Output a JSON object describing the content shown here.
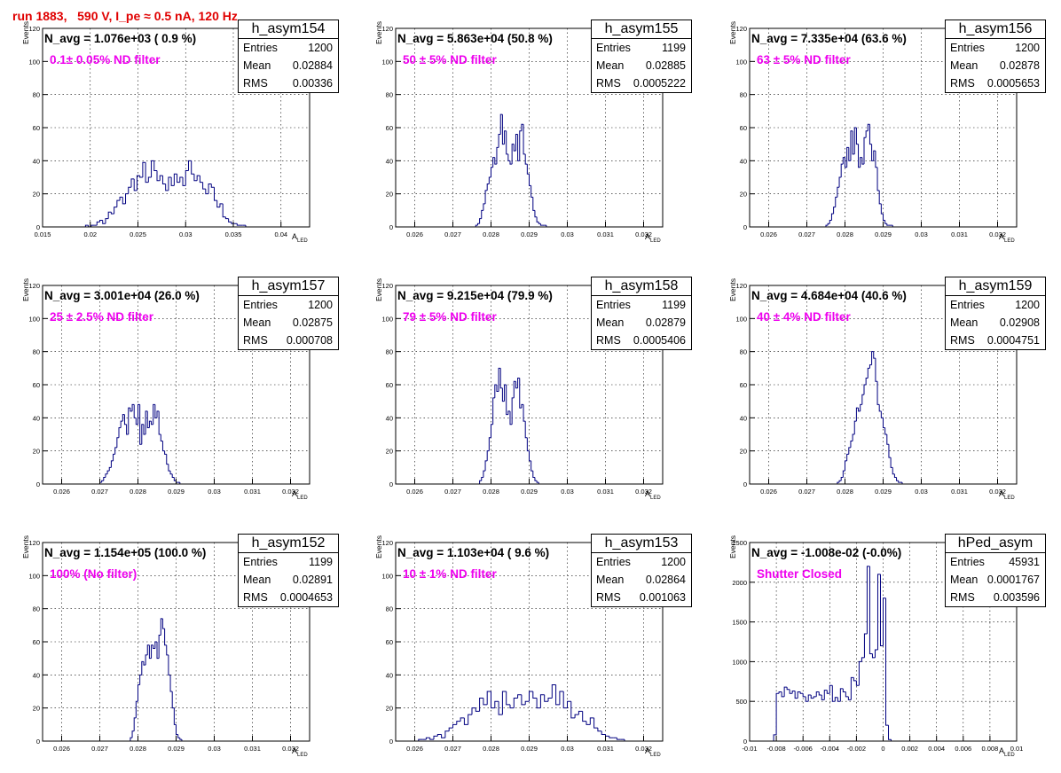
{
  "page_title": "run 1883,   590 V, I_pe ≈ 0.5 nA, 120 Hz",
  "chart_data": [
    {
      "type": "bar",
      "histogram": true,
      "name": "h_asym154",
      "navg": "N_avg = 1.076e+03 ( 0.9 %)",
      "filter": "0.1± 0.05% ND filter",
      "stats": {
        "entries": "1200",
        "mean": "0.02884",
        "rms": "0.00336"
      },
      "xlim": [
        0.015,
        0.043
      ],
      "ylim": [
        0,
        120
      ],
      "xticks": [
        0.015,
        0.02,
        0.025,
        0.03,
        0.035,
        0.04
      ],
      "xtick_labels": [
        "0.015",
        "0.02",
        "0.025",
        "0.03",
        "0.035",
        "0.04"
      ],
      "yticks": [
        0,
        20,
        40,
        60,
        80,
        100,
        120
      ],
      "ytick_labels": [
        "0",
        "20",
        "40",
        "60",
        "80",
        "100",
        "120"
      ],
      "ylabel": "Events",
      "xlabel": "A",
      "xlabel_sub": "LED",
      "bins": {
        "start": 0.0195,
        "width": 0.0003,
        "values": [
          1,
          0,
          1,
          1,
          3,
          4,
          2,
          5,
          9,
          8,
          12,
          16,
          18,
          14,
          20,
          24,
          29,
          22,
          31,
          30,
          39,
          27,
          30,
          40,
          34,
          28,
          31,
          26,
          22,
          30,
          25,
          32,
          27,
          30,
          25,
          34,
          40,
          32,
          28,
          31,
          27,
          23,
          20,
          26,
          24,
          16,
          12,
          14,
          6,
          5,
          3,
          2,
          2,
          1,
          1,
          1
        ]
      }
    },
    {
      "type": "bar",
      "histogram": true,
      "name": "h_asym155",
      "navg": "N_avg = 5.863e+04 (50.8 %)",
      "filter": "50 ± 5% ND filter",
      "stats": {
        "entries": "1199",
        "mean": "0.02885",
        "rms": "0.0005222"
      },
      "xlim": [
        0.0255,
        0.0325
      ],
      "ylim": [
        0,
        120
      ],
      "xticks": [
        0.026,
        0.027,
        0.028,
        0.029,
        0.03,
        0.031,
        0.032
      ],
      "xtick_labels": [
        "0.026",
        "0.027",
        "0.028",
        "0.029",
        "0.03",
        "0.031",
        "0.032"
      ],
      "yticks": [
        0,
        20,
        40,
        60,
        80,
        100,
        120
      ],
      "ytick_labels": [
        "0",
        "20",
        "40",
        "60",
        "80",
        "100",
        "120"
      ],
      "ylabel": "Events",
      "xlabel": "A",
      "xlabel_sub": "LED",
      "bins": {
        "start": 0.0276,
        "width": 5e-05,
        "values": [
          1,
          2,
          5,
          10,
          14,
          22,
          26,
          30,
          36,
          42,
          38,
          48,
          56,
          68,
          50,
          58,
          44,
          40,
          38,
          50,
          46,
          56,
          40,
          58,
          62,
          44,
          38,
          32,
          25,
          18,
          10,
          6,
          3,
          2,
          1,
          1,
          1
        ]
      }
    },
    {
      "type": "bar",
      "histogram": true,
      "name": "h_asym156",
      "navg": "N_avg = 7.335e+04 (63.6 %)",
      "filter": "63 ± 5% ND filter",
      "stats": {
        "entries": "1200",
        "mean": "0.02878",
        "rms": "0.0005653"
      },
      "xlim": [
        0.0255,
        0.0325
      ],
      "ylim": [
        0,
        120
      ],
      "xticks": [
        0.026,
        0.027,
        0.028,
        0.029,
        0.03,
        0.031,
        0.032
      ],
      "xtick_labels": [
        "0.026",
        "0.027",
        "0.028",
        "0.029",
        "0.03",
        "0.031",
        "0.032"
      ],
      "yticks": [
        0,
        20,
        40,
        60,
        80,
        100,
        120
      ],
      "ytick_labels": [
        "0",
        "20",
        "40",
        "60",
        "80",
        "100",
        "120"
      ],
      "ylabel": "Events",
      "xlabel": "A",
      "xlabel_sub": "LED",
      "bins": {
        "start": 0.0275,
        "width": 5e-05,
        "values": [
          1,
          2,
          4,
          8,
          12,
          18,
          24,
          30,
          38,
          42,
          36,
          48,
          40,
          58,
          44,
          60,
          50,
          36,
          42,
          38,
          54,
          58,
          62,
          50,
          40,
          46,
          36,
          22,
          14,
          8,
          4,
          2,
          1,
          1,
          1
        ]
      }
    },
    {
      "type": "bar",
      "histogram": true,
      "name": "h_asym157",
      "navg": "N_avg = 3.001e+04 (26.0 %)",
      "filter": "25 ± 2.5% ND filter",
      "stats": {
        "entries": "1200",
        "mean": "0.02875",
        "rms": "0.000708"
      },
      "xlim": [
        0.0255,
        0.0325
      ],
      "ylim": [
        0,
        120
      ],
      "xticks": [
        0.026,
        0.027,
        0.028,
        0.029,
        0.03,
        0.031,
        0.032
      ],
      "xtick_labels": [
        "0.026",
        "0.027",
        "0.028",
        "0.029",
        "0.03",
        "0.031",
        "0.032"
      ],
      "yticks": [
        0,
        20,
        40,
        60,
        80,
        100,
        120
      ],
      "ytick_labels": [
        "0",
        "20",
        "40",
        "60",
        "80",
        "100",
        "120"
      ],
      "ylabel": "Events",
      "xlabel": "A",
      "xlabel_sub": "LED",
      "bins": {
        "start": 0.027,
        "width": 5e-05,
        "values": [
          1,
          2,
          4,
          6,
          8,
          10,
          14,
          18,
          22,
          28,
          34,
          38,
          42,
          36,
          30,
          46,
          44,
          48,
          40,
          36,
          48,
          24,
          36,
          30,
          44,
          34,
          38,
          36,
          48,
          40,
          44,
          30,
          26,
          20,
          18,
          12,
          8,
          6,
          4,
          2,
          1,
          1
        ]
      }
    },
    {
      "type": "bar",
      "histogram": true,
      "name": "h_asym158",
      "navg": "N_avg = 9.215e+04 (79.9 %)",
      "filter": "79 ± 5% ND filter",
      "stats": {
        "entries": "1199",
        "mean": "0.02879",
        "rms": "0.0005406"
      },
      "xlim": [
        0.0255,
        0.0325
      ],
      "ylim": [
        0,
        120
      ],
      "xticks": [
        0.026,
        0.027,
        0.028,
        0.029,
        0.03,
        0.031,
        0.032
      ],
      "xtick_labels": [
        "0.026",
        "0.027",
        "0.028",
        "0.029",
        "0.03",
        "0.031",
        "0.032"
      ],
      "yticks": [
        0,
        20,
        40,
        60,
        80,
        100,
        120
      ],
      "ytick_labels": [
        "0",
        "20",
        "40",
        "60",
        "80",
        "100",
        "120"
      ],
      "ylabel": "Events",
      "xlabel": "A",
      "xlabel_sub": "LED",
      "bins": {
        "start": 0.0277,
        "width": 5e-05,
        "values": [
          2,
          4,
          8,
          14,
          20,
          28,
          36,
          52,
          60,
          56,
          70,
          58,
          50,
          60,
          42,
          44,
          36,
          52,
          62,
          58,
          64,
          46,
          48,
          38,
          28,
          20,
          14,
          8,
          4,
          2,
          1
        ]
      }
    },
    {
      "type": "bar",
      "histogram": true,
      "name": "h_asym159",
      "navg": "N_avg = 4.684e+04 (40.6 %)",
      "filter": "40 ± 4% ND filter",
      "stats": {
        "entries": "1200",
        "mean": "0.02908",
        "rms": "0.0004751"
      },
      "xlim": [
        0.0255,
        0.0325
      ],
      "ylim": [
        0,
        120
      ],
      "xticks": [
        0.026,
        0.027,
        0.028,
        0.029,
        0.03,
        0.031,
        0.032
      ],
      "xtick_labels": [
        "0.026",
        "0.027",
        "0.028",
        "0.029",
        "0.03",
        "0.031",
        "0.032"
      ],
      "yticks": [
        0,
        20,
        40,
        60,
        80,
        100,
        120
      ],
      "ytick_labels": [
        "0",
        "20",
        "40",
        "60",
        "80",
        "100",
        "120"
      ],
      "ylabel": "Events",
      "xlabel": "A",
      "xlabel_sub": "LED",
      "bins": {
        "start": 0.0278,
        "width": 5e-05,
        "values": [
          1,
          2,
          4,
          8,
          14,
          18,
          22,
          26,
          30,
          38,
          46,
          44,
          48,
          54,
          60,
          64,
          70,
          72,
          80,
          76,
          62,
          48,
          44,
          40,
          34,
          30,
          24,
          16,
          10,
          6,
          4,
          2,
          1,
          1
        ]
      }
    },
    {
      "type": "bar",
      "histogram": true,
      "name": "h_asym152",
      "navg": "N_avg = 1.154e+05 (100.0 %)",
      "filter": "100% (No filter)",
      "stats": {
        "entries": "1199",
        "mean": "0.02891",
        "rms": "0.0004653"
      },
      "xlim": [
        0.0255,
        0.0325
      ],
      "ylim": [
        0,
        120
      ],
      "xticks": [
        0.026,
        0.027,
        0.028,
        0.029,
        0.03,
        0.031,
        0.032
      ],
      "xtick_labels": [
        "0.026",
        "0.027",
        "0.028",
        "0.029",
        "0.03",
        "0.031",
        "0.032"
      ],
      "yticks": [
        0,
        20,
        40,
        60,
        80,
        100,
        120
      ],
      "ytick_labels": [
        "0",
        "20",
        "40",
        "60",
        "80",
        "100",
        "120"
      ],
      "ylabel": "Events",
      "xlabel": "A",
      "xlabel_sub": "LED",
      "bins": {
        "start": 0.0278,
        "width": 5e-05,
        "values": [
          2,
          6,
          14,
          24,
          34,
          40,
          48,
          46,
          52,
          58,
          50,
          58,
          56,
          60,
          50,
          64,
          74,
          68,
          58,
          52,
          40,
          30,
          20,
          10,
          4,
          2,
          1
        ]
      }
    },
    {
      "type": "bar",
      "histogram": true,
      "name": "h_asym153",
      "navg": "N_avg = 1.103e+04 ( 9.6 %)",
      "filter": "10 ± 1% ND filter",
      "stats": {
        "entries": "1200",
        "mean": "0.02864",
        "rms": "0.001063"
      },
      "xlim": [
        0.0255,
        0.0325
      ],
      "ylim": [
        0,
        120
      ],
      "xticks": [
        0.026,
        0.027,
        0.028,
        0.029,
        0.03,
        0.031,
        0.032
      ],
      "xtick_labels": [
        "0.026",
        "0.027",
        "0.028",
        "0.029",
        "0.03",
        "0.031",
        "0.032"
      ],
      "yticks": [
        0,
        20,
        40,
        60,
        80,
        100,
        120
      ],
      "ytick_labels": [
        "0",
        "20",
        "40",
        "60",
        "80",
        "100",
        "120"
      ],
      "ylabel": "Events",
      "xlabel": "A",
      "xlabel_sub": "LED",
      "bins": {
        "start": 0.0261,
        "width": 0.0001,
        "values": [
          1,
          1,
          2,
          1,
          3,
          4,
          2,
          6,
          8,
          10,
          12,
          14,
          10,
          16,
          20,
          18,
          26,
          22,
          30,
          20,
          24,
          16,
          30,
          22,
          20,
          26,
          28,
          22,
          24,
          30,
          26,
          20,
          28,
          24,
          26,
          34,
          22,
          30,
          20,
          24,
          14,
          16,
          18,
          12,
          10,
          14,
          8,
          6,
          4,
          3,
          2,
          2,
          1,
          1
        ]
      }
    },
    {
      "type": "bar",
      "histogram": true,
      "name": "hPed_asym",
      "navg": "N_avg = -1.008e-02 (-0.0%)",
      "filter": "Shutter Closed",
      "stats": {
        "entries": "45931",
        "mean": "0.0001767",
        "rms": "0.003596"
      },
      "xlim": [
        -0.01,
        0.01
      ],
      "ylim": [
        0,
        2500
      ],
      "xticks": [
        -0.01,
        -0.008,
        -0.006,
        -0.004,
        -0.002,
        0,
        0.002,
        0.004,
        0.006,
        0.008,
        0.01
      ],
      "xtick_labels": [
        "-0.01",
        "-0.008",
        "-0.006",
        "-0.004",
        "-0.002",
        "0",
        "0.002",
        "0.004",
        "0.006",
        "0.008",
        "0.01"
      ],
      "yticks": [
        0,
        500,
        1000,
        1500,
        2000,
        2500
      ],
      "ytick_labels": [
        "0",
        "500",
        "1000",
        "1500",
        "2000",
        "2500"
      ],
      "ylabel": "Events",
      "xlabel": "A",
      "xlabel_sub": "LED",
      "bins": {
        "start": -0.0082,
        "width": 0.0002,
        "values": [
          80,
          600,
          620,
          560,
          680,
          650,
          600,
          630,
          540,
          620,
          600,
          560,
          500,
          580,
          540,
          560,
          620,
          580,
          520,
          640,
          600,
          700,
          500,
          550,
          500,
          660,
          620,
          560,
          520,
          800,
          760,
          700,
          1000,
          1050,
          1350,
          2200,
          1100,
          1050,
          1150,
          2100,
          1200,
          1800,
          200,
          20
        ]
      }
    }
  ]
}
